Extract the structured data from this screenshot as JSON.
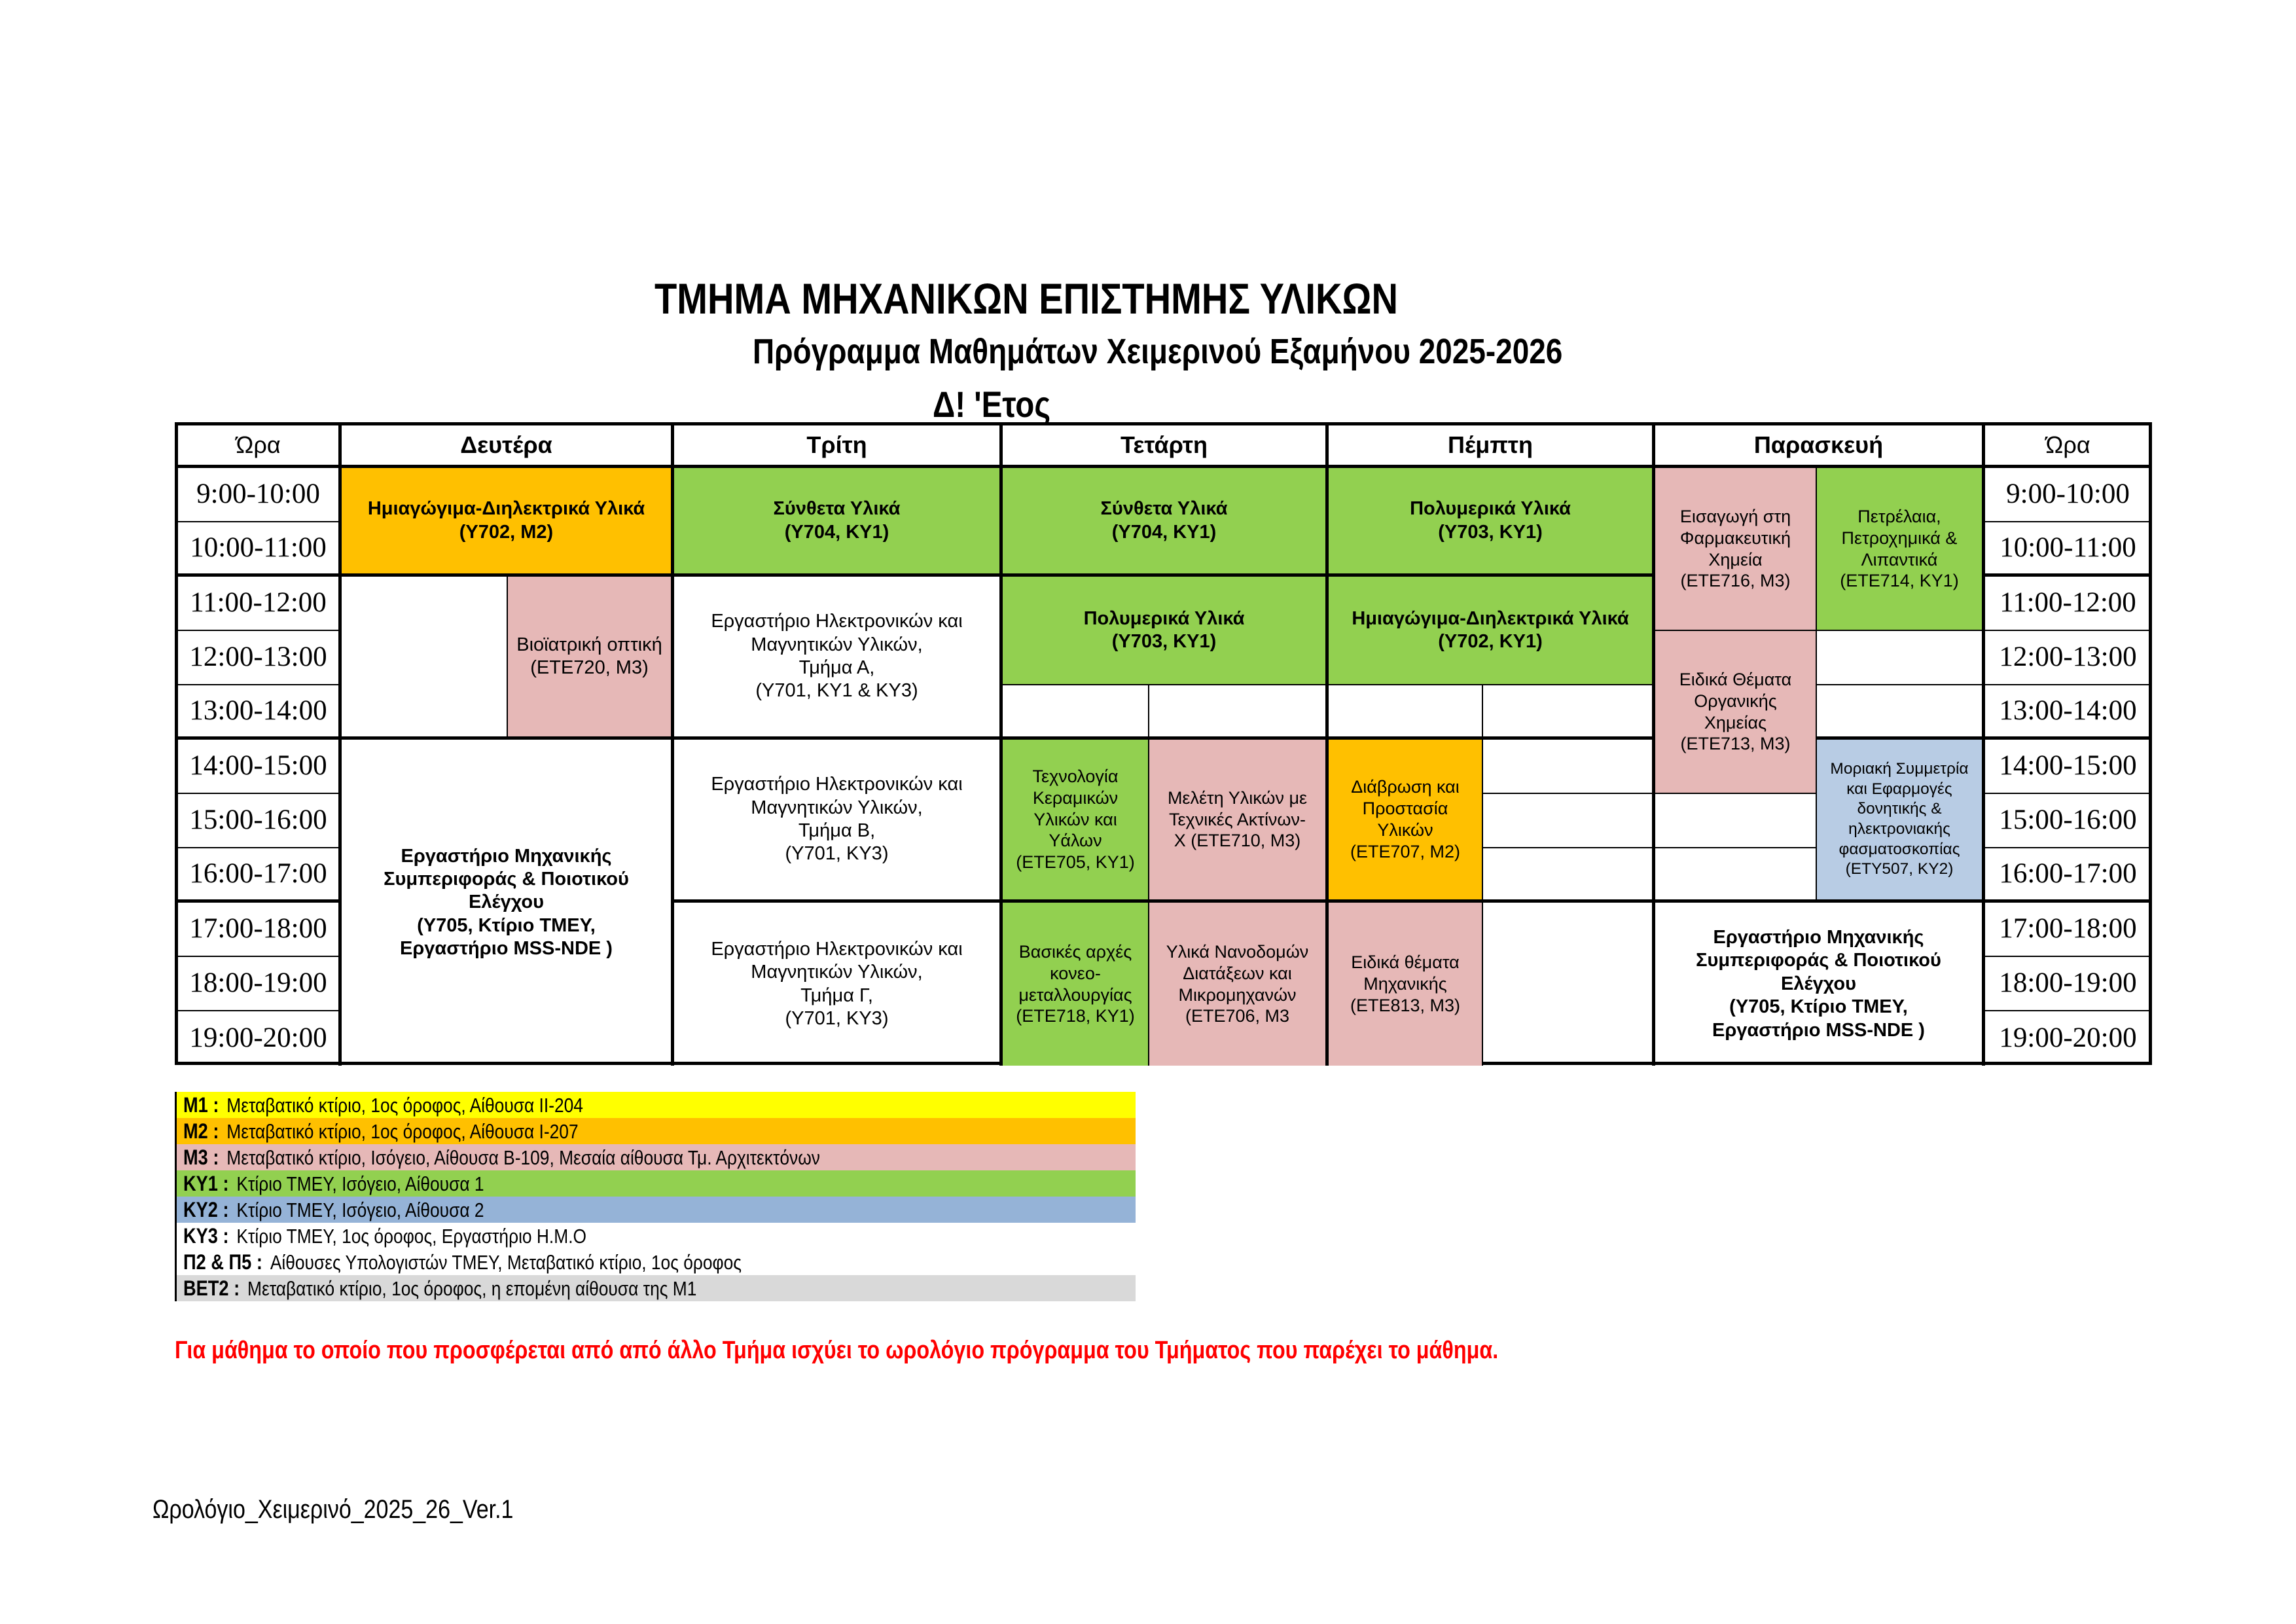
{
  "page": {
    "title": "ΤΜΗΜΑ ΜΗΧΑΝΙΚΩΝ ΕΠΙΣΤΗΜΗΣ ΥΛΙΚΩΝ",
    "subtitle": "Πρόγραμμα Μαθημάτων Χειμερινού Εξαμήνου 2025-2026",
    "year_label": "Δ! 'Ετος",
    "note": "Για μάθημα το οποίο που προσφέρεται από από άλλο Τμήμα ισχύει το ωρολόγιο πρόγραμμα του Τμήματος που παρέχει το μάθημα.",
    "footer": "Ωρολόγιο_Χειμερινό_2025_26_Ver.1"
  },
  "colors": {
    "orange": "#FFC000",
    "green": "#92D050",
    "rose": "#E6B8B7",
    "blue_cell": "#B8CCE4",
    "blue_legend": "#95B3D7",
    "yellow": "#FFFF00",
    "gray": "#D9D9D9",
    "note_red": "#FF0000"
  },
  "table": {
    "headers": [
      "Ώρα",
      "Δευτέρα",
      "Τρίτη",
      "Τετάρτη",
      "Πέμπτη",
      "Παρασκευή",
      "Ώρα"
    ],
    "times": [
      "9:00-10:00",
      "10:00-11:00",
      "11:00-12:00",
      "12:00-13:00",
      "13:00-14:00",
      "14:00-15:00",
      "15:00-16:00",
      "16:00-17:00",
      "17:00-18:00",
      "18:00-19:00",
      "19:00-20:00"
    ],
    "cells": {
      "mon_semiconductors": {
        "text": "Ημιαγώγιμα-Διηλεκτρικά Υλικά\n(Υ702, Μ2)"
      },
      "mon_biomedical": {
        "text": "Βιοϊατρική οπτική\n(ΕΤΕ720, Μ3)"
      },
      "mss_lab": {
        "text": "Εργαστήριο Μηχανικής\nΣυμπεριφοράς & Ποιοτικού Ελέγχου\n(Υ705,  Κτίριο ΤΜΕΥ,\nΕργαστήριο MSS-NDE )"
      },
      "tue_composites": {
        "text": "Σύνθετα Υλικά\n(Υ704, ΚΥ1)"
      },
      "tue_lab_a": {
        "text": "Εργαστήριο Ηλεκτρονικών και\nΜαγνητικών Υλικών,\nΤμήμα Α,\n(Υ701, ΚΥ1 &  ΚΥ3)"
      },
      "tue_lab_b": {
        "text": "Εργαστήριο Ηλεκτρονικών και\nΜαγνητικών Υλικών,\nΤμήμα Β,\n(Υ701, ΚΥ3)"
      },
      "tue_lab_c": {
        "text": "Εργαστήριο Ηλεκτρονικών και\nΜαγνητικών Υλικών,\nΤμήμα Γ,\n(Υ701, ΚΥ3)"
      },
      "wed_composites": {
        "text": "Σύνθετα Υλικά\n(Υ704, ΚΥ1)"
      },
      "wed_polymers": {
        "text": "Πολυμερικά Υλικά\n(Υ703, ΚΥ1)"
      },
      "wed_ceramics": {
        "text": "Τεχνολογία\nΚεραμικών\nΥλικών και Υάλων\n(ΕΤΕ705, ΚΥ1)"
      },
      "wed_xray": {
        "text": "Μελέτη Υλικών με\nΤεχνικές Ακτίνων-\nΧ  (ΕΤΕ710, Μ3)"
      },
      "wed_powder": {
        "text": "Βασικές αρχές\nκονεο-\nμεταλλουργίας\n(ΕΤΕ718, ΚΥ1)"
      },
      "wed_nano": {
        "text": "Υλικά Νανοδομών\nΔιατάξεων και\nΜικρομηχανών\n(ΕΤΕ706, Μ3"
      },
      "thu_polymers": {
        "text": "Πολυμερικά Υλικά\n(Υ703, ΚΥ1)"
      },
      "thu_semiconductors": {
        "text": "Ημιαγώγιμα-Διηλεκτρικά Υλικά\n(Υ702, ΚΥ1)"
      },
      "thu_corrosion": {
        "text": "Διάβρωση και\nΠροστασία\nΥλικών\n(ΕΤΕ707, Μ2)"
      },
      "thu_mechanics": {
        "text": "Ειδικά θέματα\nΜηχανικής\n(ΕΤΕ813, Μ3)"
      },
      "fri_pharma": {
        "text": "Εισαγωγή στη\nΦαρμακευτική\nΧημεία\n(ΕΤΕ716, Μ3)"
      },
      "fri_petroleum": {
        "text": "Πετρέλαια,\nΠετροχημικά &\nΛιπαντικά\n(ΕΤΕ714, ΚΥ1)"
      },
      "fri_organic": {
        "text": "Ειδικά Θέματα\nΟργανικής\nΧημείας\n(ΕΤΕ713, Μ3)"
      },
      "fri_molecular": {
        "text": "Μοριακή Συμμετρία\nκαι Εφαρμογές\nδονητικής &\nηλεκτρονιακής\nφασματοσκοπίας\n(ΕΤΥ507, ΚΥ2)"
      }
    }
  },
  "legend": {
    "items": [
      {
        "label": "Μ1 :",
        "text": "Μεταβατικό κτίριο, 1ος όροφος, Αίθουσα ΙΙ-204",
        "color": "#FFFF00"
      },
      {
        "label": "Μ2 :",
        "text": "Μεταβατικό κτίριο, 1ος όροφος, Αίθουσα Ι-207",
        "color": "#FFC000"
      },
      {
        "label": "Μ3 :",
        "text": "Μεταβατικό κτίριο, Ισόγειο,  Αίθουσα Β-109, Μεσαία αίθουσα Τμ. Αρχιτεκτόνων",
        "color": "#E6B8B7"
      },
      {
        "label": "ΚΥ1 :",
        "text": "Κτίριο ΤΜΕΥ, Ισόγειο,  Αίθουσα 1",
        "color": "#92D050"
      },
      {
        "label": "ΚΥ2 :",
        "text": "Κτίριο ΤΜΕΥ, Ισόγειο,  Αίθουσα 2",
        "color": "#95B3D7"
      },
      {
        "label": "ΚΥ3 :",
        "text": "Κτίριο ΤΜΕΥ, 1ος όροφος,  Εργαστήριο Η.Μ.Ο",
        "color": null
      },
      {
        "label": "Π2 & Π5 :",
        "text": "Αίθουσες Υπολογιστών ΤΜΕΥ, Μεταβατικό κτίριο, 1ος όροφος",
        "color": null
      },
      {
        "label": "ΒΕΤ2 :",
        "text": "Μεταβατικό κτίριο, 1ος όροφος, η επομένη αίθουσα της Μ1",
        "color": "#D9D9D9"
      }
    ]
  }
}
